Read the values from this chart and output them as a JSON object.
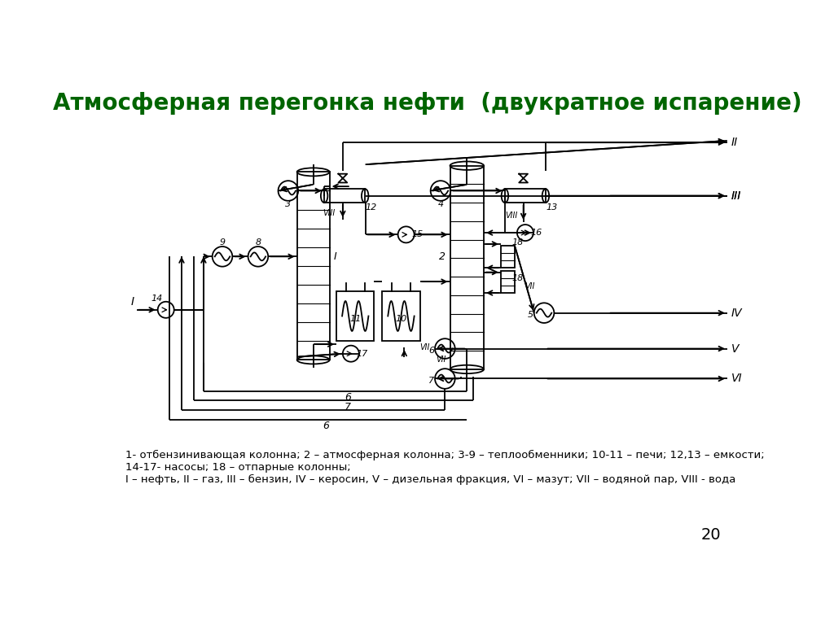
{
  "title": "Атмосферная перегонка нефти  (двукратное испарение)",
  "title_color": "#006400",
  "title_fontsize": 20,
  "bg_color": "#ffffff",
  "line_color": "#000000",
  "legend_line1": "1- отбензинивающая колонна; 2 – атмосферная колонна; 3-9 – теплообменники; 10-11 – печи; 12,13 – емкости;",
  "legend_line2": "14-17- насосы; 18 – отпарные колонны;",
  "legend_line3": "I – нефть, II – газ, III – бензин, IV – керосин, V – дизельная фракция, VI – мазут; VII – водяной пар, VIII - вода",
  "page_number": "20"
}
